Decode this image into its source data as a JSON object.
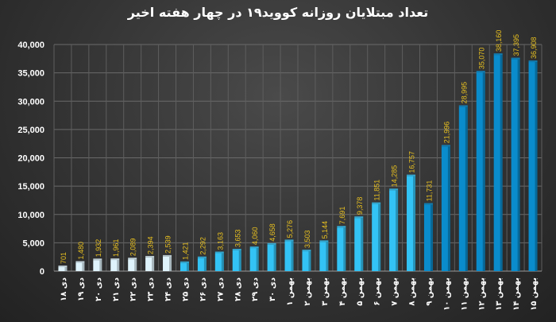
{
  "chart_data": {
    "type": "bar",
    "title": "تعداد مبتلایان روزانه کووید۱۹ در چهار هفته اخیر",
    "xlabel": "",
    "ylabel": "",
    "ylim": [
      0,
      40000
    ],
    "yticks": [
      "0",
      "5,000",
      "10,000",
      "15,000",
      "20,000",
      "25,000",
      "30,000",
      "35,000",
      "40,000"
    ],
    "grid": true,
    "categories": [
      "۱۸ دی",
      "۱۹ دی",
      "۲۰ دی",
      "۲۱ دی",
      "۲۲ دی",
      "۲۳ دی",
      "۲۴ دی",
      "۲۵ دی",
      "۲۶ دی",
      "۲۷ دی",
      "۲۸ دی",
      "۲۹ دی",
      "۳۰ دی",
      "۱ بهمن",
      "۲ بهمن",
      "۳ بهمن",
      "۴ بهمن",
      "۵ بهمن",
      "۶ بهمن",
      "۷ بهمن",
      "۸ بهمن",
      "۹ بهمن",
      "۱۰ بهمن",
      "۱۱ بهمن",
      "۱۲ بهمن",
      "۱۳ بهمن",
      "۱۴ بهمن",
      "۱۵ بهمن"
    ],
    "values": [
      701,
      1480,
      1932,
      1961,
      2089,
      2394,
      2539,
      1421,
      2292,
      3163,
      3653,
      4060,
      4658,
      5276,
      3503,
      5144,
      7691,
      9378,
      11851,
      14285,
      16757,
      11731,
      21996,
      28995,
      35070,
      38160,
      37395,
      36908
    ],
    "data_labels": [
      "701",
      "1,480",
      "1,932",
      "1,961",
      "2,089",
      "2,394",
      "2,539",
      "1,421",
      "2,292",
      "3,163",
      "3,653",
      "4,060",
      "4,658",
      "5,276",
      "3,503",
      "5,144",
      "7,691",
      "9,378",
      "11,851",
      "14,285",
      "16,757",
      "11,731",
      "21,996",
      "28,995",
      "35,070",
      "38,160",
      "37,395",
      "36,908"
    ],
    "bar_colors": {
      "pale": "#dff3fb",
      "light": "#33c3f5",
      "dark": "#0a8ccc"
    },
    "label_color": "#e8c020"
  }
}
